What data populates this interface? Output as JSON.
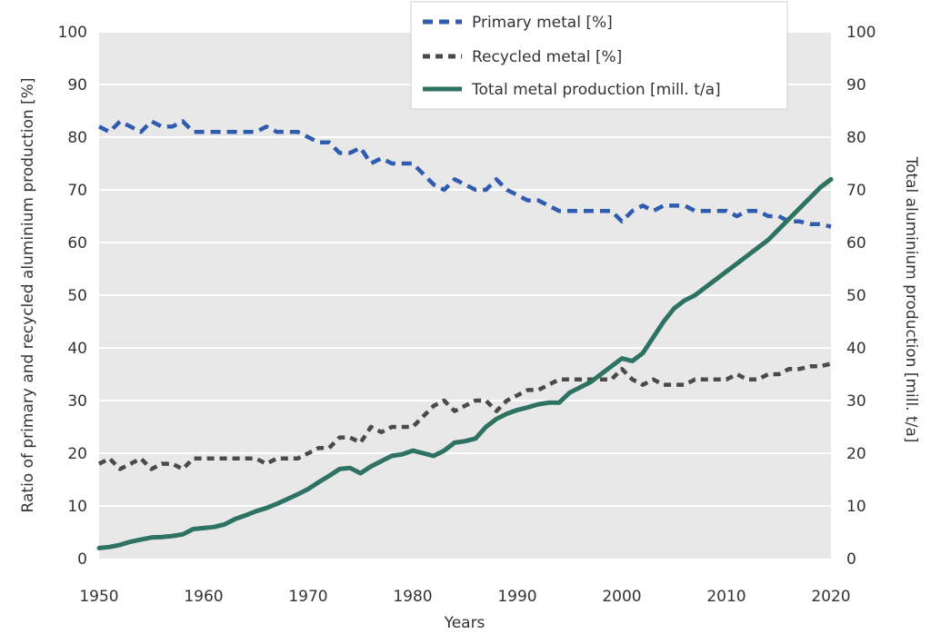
{
  "chart_data": {
    "type": "line",
    "xlabel": "Years",
    "ylabel_left": "Ratio of primary and recycled aluminium production [%]",
    "ylabel_right": "Total aluminium production [mill. t/a]",
    "xlim": [
      1950,
      2020
    ],
    "ylim_left": [
      0,
      100
    ],
    "ylim_right": [
      0,
      100
    ],
    "grid": true,
    "legend_position": "top-center",
    "x_ticks": [
      "1950",
      "1960",
      "1970",
      "1980",
      "1990",
      "2000",
      "2010",
      "2020"
    ],
    "y_ticks_left": [
      "0",
      "10",
      "20",
      "30",
      "40",
      "50",
      "60",
      "70",
      "80",
      "90",
      "100"
    ],
    "y_ticks_right": [
      "0",
      "10",
      "20",
      "30",
      "40",
      "50",
      "60",
      "70",
      "80",
      "90",
      "100"
    ],
    "series": [
      {
        "name": "Primary metal [%]",
        "color": "#2f5cae",
        "style": "dashed",
        "axis": "left",
        "x": [
          1950,
          1951,
          1952,
          1953,
          1954,
          1955,
          1956,
          1957,
          1958,
          1959,
          1960,
          1961,
          1962,
          1963,
          1964,
          1965,
          1966,
          1967,
          1968,
          1969,
          1970,
          1971,
          1972,
          1973,
          1974,
          1975,
          1976,
          1977,
          1978,
          1979,
          1980,
          1981,
          1982,
          1983,
          1984,
          1985,
          1986,
          1987,
          1988,
          1989,
          1990,
          1991,
          1992,
          1993,
          1994,
          1995,
          1996,
          1997,
          1998,
          1999,
          2000,
          2001,
          2002,
          2003,
          2004,
          2005,
          2006,
          2007,
          2008,
          2009,
          2010,
          2011,
          2012,
          2013,
          2014,
          2015,
          2016,
          2017,
          2018,
          2019,
          2020
        ],
        "values": [
          82,
          81,
          83,
          82,
          81,
          83,
          82,
          82,
          83,
          81,
          81,
          81,
          81,
          81,
          81,
          81,
          82,
          81,
          81,
          81,
          80,
          79,
          79,
          77,
          77,
          78,
          75,
          76,
          75,
          75,
          75,
          73,
          71,
          70,
          72,
          71,
          70,
          70,
          72,
          70,
          69,
          68,
          68,
          67,
          66,
          66,
          66,
          66,
          66,
          66,
          64,
          66,
          67,
          66,
          67,
          67,
          67,
          66,
          66,
          66,
          66,
          65,
          66,
          66,
          65,
          65,
          64,
          64,
          63.5,
          63.5,
          63
        ]
      },
      {
        "name": "Recycled metal [%]",
        "color": "#4a4a4a",
        "style": "dashed",
        "axis": "left",
        "x": [
          1950,
          1951,
          1952,
          1953,
          1954,
          1955,
          1956,
          1957,
          1958,
          1959,
          1960,
          1961,
          1962,
          1963,
          1964,
          1965,
          1966,
          1967,
          1968,
          1969,
          1970,
          1971,
          1972,
          1973,
          1974,
          1975,
          1976,
          1977,
          1978,
          1979,
          1980,
          1981,
          1982,
          1983,
          1984,
          1985,
          1986,
          1987,
          1988,
          1989,
          1990,
          1991,
          1992,
          1993,
          1994,
          1995,
          1996,
          1997,
          1998,
          1999,
          2000,
          2001,
          2002,
          2003,
          2004,
          2005,
          2006,
          2007,
          2008,
          2009,
          2010,
          2011,
          2012,
          2013,
          2014,
          2015,
          2016,
          2017,
          2018,
          2019,
          2020
        ],
        "values": [
          18,
          19,
          17,
          18,
          19,
          17,
          18,
          18,
          17,
          19,
          19,
          19,
          19,
          19,
          19,
          19,
          18,
          19,
          19,
          19,
          20,
          21,
          21,
          23,
          23,
          22,
          25,
          24,
          25,
          25,
          25,
          27,
          29,
          30,
          28,
          29,
          30,
          30,
          28,
          30,
          31,
          32,
          32,
          33,
          34,
          34,
          34,
          34,
          34,
          34,
          36,
          34,
          33,
          34,
          33,
          33,
          33,
          34,
          34,
          34,
          34,
          35,
          34,
          34,
          35,
          35,
          36,
          36,
          36.5,
          36.5,
          37
        ]
      },
      {
        "name": "Total metal production [mill. t/a]",
        "color": "#2e7264",
        "style": "solid",
        "axis": "right",
        "x": [
          1950,
          1951,
          1952,
          1953,
          1954,
          1955,
          1956,
          1957,
          1958,
          1959,
          1960,
          1961,
          1962,
          1963,
          1964,
          1965,
          1966,
          1967,
          1968,
          1969,
          1970,
          1971,
          1972,
          1973,
          1974,
          1975,
          1976,
          1977,
          1978,
          1979,
          1980,
          1981,
          1982,
          1983,
          1984,
          1985,
          1986,
          1987,
          1988,
          1989,
          1990,
          1991,
          1992,
          1993,
          1994,
          1995,
          1996,
          1997,
          1998,
          1999,
          2000,
          2001,
          2002,
          2003,
          2004,
          2005,
          2006,
          2007,
          2008,
          2009,
          2010,
          2011,
          2012,
          2013,
          2014,
          2015,
          2016,
          2017,
          2018,
          2019,
          2020
        ],
        "values": [
          2,
          2.2,
          2.6,
          3.2,
          3.6,
          4,
          4.1,
          4.3,
          4.6,
          5.6,
          5.8,
          6,
          6.5,
          7.5,
          8.2,
          9,
          9.6,
          10.4,
          11.3,
          12.2,
          13.2,
          14.5,
          15.7,
          17,
          17.2,
          16.2,
          17.5,
          18.5,
          19.5,
          19.8,
          20.5,
          20,
          19.5,
          20.5,
          22,
          22.3,
          22.8,
          25,
          26.5,
          27.5,
          28.2,
          28.7,
          29.3,
          29.6,
          29.6,
          31.5,
          32.5,
          33.5,
          35,
          36.5,
          38,
          37.5,
          39,
          42,
          45,
          47.5,
          49,
          50,
          51.5,
          53,
          54.5,
          56,
          57.5,
          59,
          60.5,
          62.5,
          64.5,
          66.5,
          68.5,
          70.5,
          72
        ]
      }
    ]
  }
}
